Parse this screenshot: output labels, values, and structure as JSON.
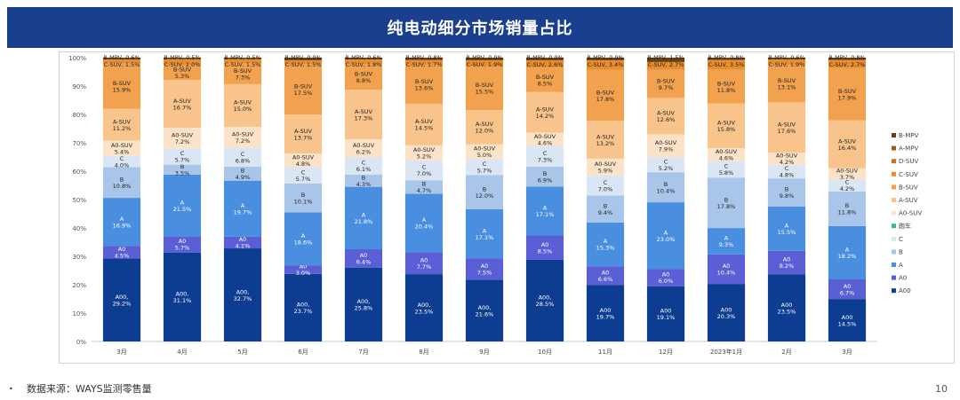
{
  "header": {
    "title": "纯电动细分市场销量占比"
  },
  "footer": {
    "bullet": "•",
    "source": "数据来源：WAYS监测零售量",
    "page": "10"
  },
  "chart_data": {
    "type": "bar",
    "stacked": true,
    "normalized": true,
    "title": "纯电动细分市场销量占比",
    "ylim": [
      0,
      100
    ],
    "yticks": [
      "0%",
      "10%",
      "20%",
      "30%",
      "40%",
      "50%",
      "60%",
      "70%",
      "80%",
      "90%",
      "100%"
    ],
    "categories": [
      "3月",
      "4月",
      "5月",
      "6月",
      "7月",
      "8月",
      "9月",
      "10月",
      "11月",
      "12月",
      "2023年1月",
      "2月",
      "3月"
    ],
    "colors": {
      "A00": "#0d3d91",
      "A0": "#5a5fd6",
      "A": "#4a8ee0",
      "B": "#a9c6ea",
      "C": "#dbe6f4",
      "跑车": "#3bb58a",
      "A0-SUV": "#fce3c8",
      "A-SUV": "#f9c48c",
      "B-SUV": "#f2a24e",
      "C-SUV": "#e88e2e",
      "D-SUV": "#c7741f",
      "A-MPV": "#9b5a1c",
      "B-MPV": "#6e3d12"
    },
    "legend": [
      "B-MPV",
      "A-MPV",
      "D-SUV",
      "C-SUV",
      "B-SUV",
      "A-SUV",
      "A0-SUV",
      "跑车",
      "C",
      "B",
      "A",
      "A0",
      "A00"
    ],
    "legend_position": "right",
    "series": [
      {
        "name": "A00",
        "values": [
          29.2,
          31.1,
          32.7,
          23.7,
          25.8,
          23.5,
          21.6,
          28.5,
          19.7,
          19.1,
          20.3,
          23.5,
          14.5
        ],
        "labels": [
          "A00,\n29.2%",
          "A00,\n31.1%",
          "A00,\n32.7%",
          "A00,\n23.7%",
          "A00,\n25.8%",
          "A00,\n23.5%",
          "A00,\n21.6%",
          "A00,\n28.5%",
          "A00\n19.7%",
          "A00\n19.1%",
          "A00\n20.3%",
          "A00\n23.5%",
          "A00\n14.5%"
        ]
      },
      {
        "name": "A0",
        "values": [
          4.5,
          5.7,
          4.1,
          3.0,
          6.4,
          7.7,
          7.5,
          8.5,
          6.6,
          6.0,
          10.4,
          8.2,
          6.7
        ],
        "labels": [
          "A0\n4.5%",
          "A0\n5.7%",
          "A0\n4.1%",
          "A0\n3.0%",
          "A0\n6.4%",
          "A0\n7.7%",
          "A0\n7.5%",
          "A0\n8.5%",
          "A0\n6.6%",
          "A0\n6.0%",
          "A0\n10.4%",
          "A0\n8.2%",
          "A0\n6.7%"
        ]
      },
      {
        "name": "A",
        "values": [
          16.9,
          21.5,
          19.7,
          18.6,
          21.8,
          20.4,
          17.1,
          17.1,
          15.3,
          23.0,
          9.3,
          15.5,
          18.2
        ],
        "labels": [
          "A\n16.9%",
          "A\n21.5%",
          "A\n19.7%",
          "A\n18.6%",
          "A\n21.8%",
          "A\n20.4%",
          "A\n17.1%",
          "A\n17.1%",
          "A\n15.3%",
          "A\n23.0%",
          "A\n9.3%",
          "A\n15.5%",
          "A\n18.2%"
        ]
      },
      {
        "name": "B",
        "values": [
          10.8,
          3.5,
          4.9,
          10.1,
          4.3,
          4.7,
          12.0,
          6.9,
          9.4,
          10.4,
          17.8,
          9.8,
          11.8
        ],
        "labels": [
          "B\n10.8%",
          "B\n3.5%",
          "B\n4.9%",
          "B\n10.1%",
          "B\n4.3%",
          "B\n4.7%",
          "B\n12.0%",
          "B\n6.9%",
          "B\n9.4%",
          "B\n10.4%",
          "B\n17.8%",
          "B\n9.8%",
          "B\n11.8%"
        ]
      },
      {
        "name": "C",
        "values": [
          4.0,
          5.7,
          6.8,
          5.7,
          6.1,
          7.0,
          5.7,
          7.3,
          7.0,
          5.2,
          5.8,
          4.8,
          4.2
        ],
        "labels": [
          "C\n4.0%",
          "C\n5.7%",
          "C\n6.8%",
          "C\n5.7%",
          "C\n6.1%",
          "C\n7.0%",
          "C\n5.7%",
          "C\n7.3%",
          "C\n7.0%",
          "C\n5.2%",
          "C\n5.8%",
          "C\n4.8%",
          "C\n4.2%"
        ]
      },
      {
        "name": "跑车",
        "values": [
          0,
          0,
          0,
          0,
          0,
          0,
          0,
          0,
          0,
          0,
          0,
          0,
          0
        ],
        "labels": []
      },
      {
        "name": "A0-SUV",
        "values": [
          5.4,
          7.2,
          7.2,
          4.8,
          6.2,
          5.2,
          5.0,
          4.6,
          5.9,
          7.9,
          4.6,
          4.2,
          3.7
        ],
        "labels": [
          "A0-SUV\n5.4%",
          "A0-SUV\n7.2%",
          "A0-SUV\n7.2%",
          "A0-SUV\n4.8%",
          "A0-SUV\n6.2%",
          "A0-SUV\n5.2%",
          "A0-SUV\n5.0%",
          "A0-SUV\n4.6%",
          "A0-SUV\n5.9%",
          "A0-SUV\n7.9%",
          "A0-SUV\n4.6%",
          "A0-SUV\n4.2%",
          "A0-SUV\n3.7%"
        ]
      },
      {
        "name": "A-SUV",
        "values": [
          11.2,
          16.7,
          15.0,
          13.7,
          17.3,
          14.5,
          12.0,
          14.2,
          13.2,
          12.6,
          15.8,
          17.6,
          16.4
        ],
        "labels": [
          "A-SUV\n11.2%",
          "A-SUV\n16.7%",
          "A-SUV\n15.0%",
          "A-SUV\n13.7%",
          "A-SUV\n17.3%",
          "A-SUV\n14.5%",
          "A-SUV\n12.0%",
          "A-SUV\n14.2%",
          "A-SUV\n13.2%",
          "A-SUV\n12.6%",
          "A-SUV\n15.8%",
          "A-SUV\n17.6%",
          "A-SUV\n16.4%"
        ]
      },
      {
        "name": "B-SUV",
        "values": [
          15.9,
          5.3,
          7.3,
          17.5,
          8.8,
          13.6,
          15.5,
          8.5,
          17.8,
          9.7,
          11.8,
          13.1,
          17.9
        ],
        "labels": [
          "B-SUV\n15.9%",
          "B-SUV\n5.3%",
          "B-SUV\n7.3%",
          "B-SUV\n17.5%",
          "B-SUV\n8.8%",
          "B-SUV\n13.6%",
          "B-SUV\n15.5%",
          "B-SUV\n8.5%",
          "B-SUV\n17.8%",
          "B-SUV\n9.7%",
          "B-SUV\n11.8%",
          "B-SUV\n13.1%",
          "B-SUV\n17.9%"
        ]
      },
      {
        "name": "C-SUV",
        "values": [
          1.5,
          2.0,
          1.5,
          1.5,
          1.8,
          1.7,
          1.9,
          2.6,
          3.4,
          2.7,
          3.5,
          1.9,
          2.7
        ],
        "labels": [
          "C-SUV, 1.5%",
          "C-SUV, 2.0%",
          "C-SUV, 1.5%",
          "C-SUV, 1.5%",
          "C-SUV, 1.8%",
          "C-SUV, 1.7%",
          "C-SUV, 1.9%",
          "C-SUV, 2.6%",
          "C-SUV, 3.4%",
          "C-SUV, 2.7%",
          "C-SUV, 3.5%",
          "C-SUV, 1.9%",
          "C-SUV, 2.7%"
        ]
      },
      {
        "name": "D-SUV",
        "values": [
          0,
          0,
          0,
          0,
          0,
          0,
          0,
          0,
          0,
          0,
          0,
          0,
          0
        ],
        "labels": []
      },
      {
        "name": "A-MPV",
        "values": [
          0,
          0,
          0,
          0,
          0,
          0,
          0,
          0,
          0,
          0,
          0,
          0,
          0
        ],
        "labels": []
      },
      {
        "name": "B-MPV",
        "values": [
          0.6,
          0.5,
          0.5,
          0.9,
          0.6,
          0.8,
          0.9,
          0.9,
          0.9,
          1.5,
          0.8,
          0.6,
          0.8
        ],
        "labels": [
          "B-MPV, 0.6%",
          "B-MPV, 0.5%",
          "B-MPV, 0.5%",
          "B-MPV, 0.9%",
          "B-MPV, 0.6%",
          "B-MPV, 0.8%",
          "B-MPV, 0.9%",
          "B-MPV, 0.9%",
          "B-MPV, 0.9%",
          "B-MPV, 1.5%",
          "B-MPV, 0.8%",
          "B-MPV, 0.6%",
          "B-MPV, 0.8%"
        ]
      }
    ]
  }
}
